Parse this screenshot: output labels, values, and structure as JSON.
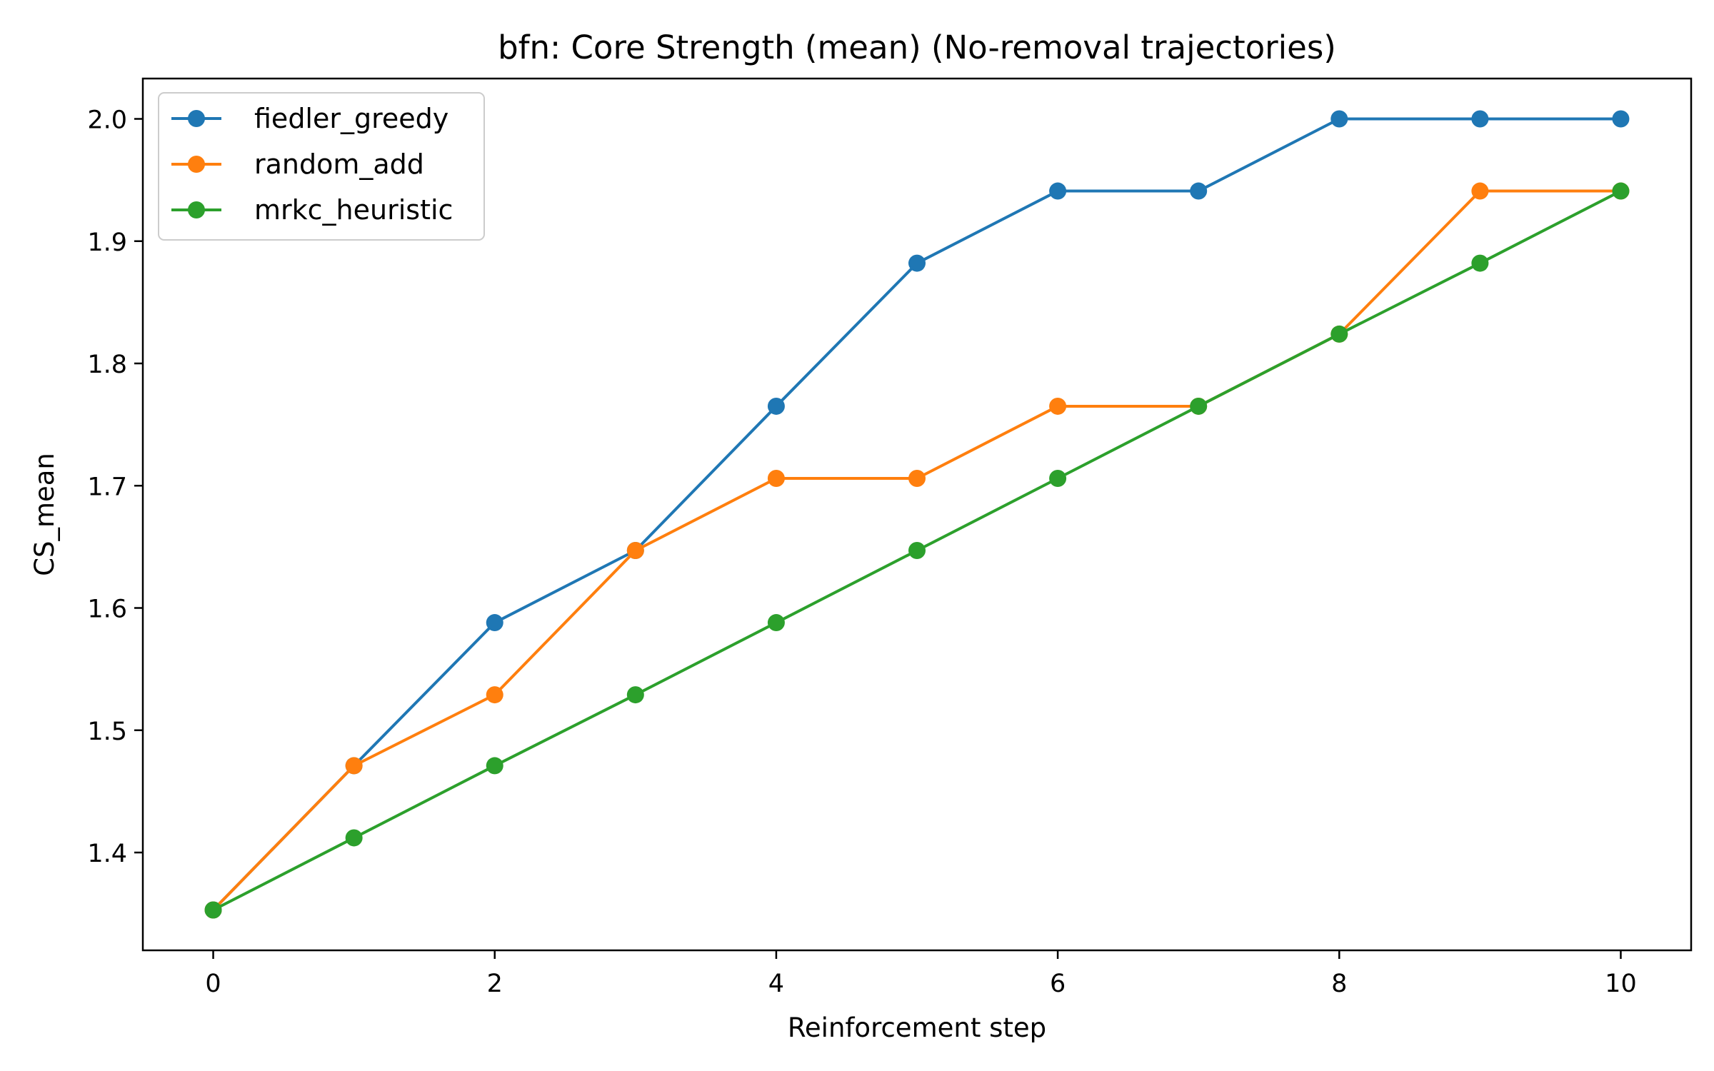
{
  "chart_data": {
    "type": "line",
    "title": "bfn: Core Strength (mean) (No-removal trajectories)",
    "xlabel": "Reinforcement step",
    "ylabel": "CS_mean",
    "x": [
      0,
      1,
      2,
      3,
      4,
      5,
      6,
      7,
      8,
      9,
      10
    ],
    "xlim": [
      -0.5,
      10.5
    ],
    "ylim": [
      1.32,
      2.033
    ],
    "xticks": [
      0,
      2,
      4,
      6,
      8,
      10
    ],
    "xtick_labels": [
      "0",
      "2",
      "4",
      "6",
      "8",
      "10"
    ],
    "yticks": [
      1.4,
      1.5,
      1.6,
      1.7,
      1.8,
      1.9,
      2.0
    ],
    "ytick_labels": [
      "1.4",
      "1.5",
      "1.6",
      "1.7",
      "1.8",
      "1.9",
      "2.0"
    ],
    "grid": false,
    "legend_position": "top-left",
    "series": [
      {
        "name": "fiedler_greedy",
        "color": "#1f77b4",
        "values": [
          1.353,
          1.471,
          1.588,
          1.647,
          1.765,
          1.882,
          1.941,
          1.941,
          2.0,
          2.0,
          2.0
        ]
      },
      {
        "name": "random_add",
        "color": "#ff7f0e",
        "values": [
          1.353,
          1.471,
          1.529,
          1.647,
          1.706,
          1.706,
          1.765,
          1.765,
          1.824,
          1.941,
          1.941
        ]
      },
      {
        "name": "mrkc_heuristic",
        "color": "#2ca02c",
        "values": [
          1.353,
          1.412,
          1.471,
          1.529,
          1.588,
          1.647,
          1.706,
          1.765,
          1.824,
          1.882,
          1.941
        ]
      }
    ]
  }
}
